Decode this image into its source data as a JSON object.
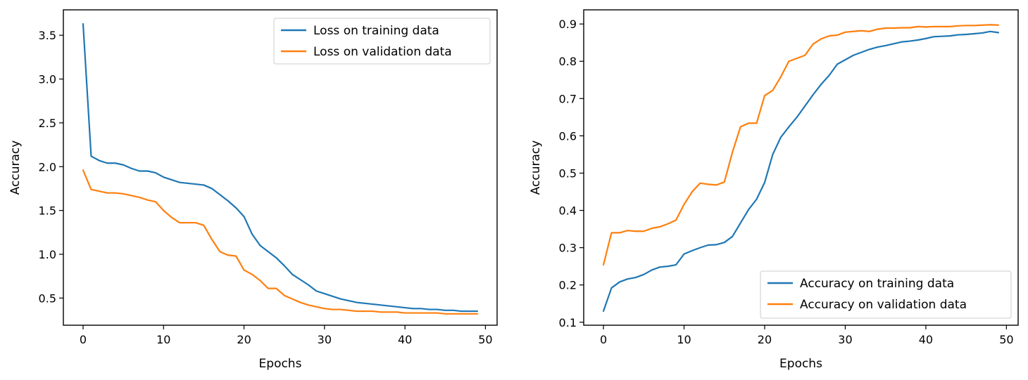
{
  "colors": {
    "train": "#1f77b4",
    "val": "#ff7f0e"
  },
  "chart_data": [
    {
      "type": "line",
      "title": "",
      "xlabel": "Epochs",
      "ylabel": "Accuracy",
      "xlim": [
        -2.45,
        51.45
      ],
      "ylim": [
        0.19,
        3.79
      ],
      "xticks": [
        0,
        10,
        20,
        30,
        40,
        50
      ],
      "xtick_labels": [
        "0",
        "10",
        "20",
        "30",
        "40",
        "50"
      ],
      "yticks": [
        0.5,
        1.0,
        1.5,
        2.0,
        2.5,
        3.0,
        3.5
      ],
      "ytick_labels": [
        "0.5",
        "1.0",
        "1.5",
        "2.0",
        "2.5",
        "3.0",
        "3.5"
      ],
      "legend_position": "top-right",
      "x": [
        0,
        1,
        2,
        3,
        4,
        5,
        6,
        7,
        8,
        9,
        10,
        11,
        12,
        13,
        14,
        15,
        16,
        17,
        18,
        19,
        20,
        21,
        22,
        23,
        24,
        25,
        26,
        27,
        28,
        29,
        30,
        31,
        32,
        33,
        34,
        35,
        36,
        37,
        38,
        39,
        40,
        41,
        42,
        43,
        44,
        45,
        46,
        47,
        48,
        49
      ],
      "series": [
        {
          "name": "Loss on training data",
          "color_key": "train",
          "values": [
            3.63,
            2.12,
            2.07,
            2.04,
            2.04,
            2.02,
            1.98,
            1.95,
            1.95,
            1.93,
            1.88,
            1.85,
            1.82,
            1.81,
            1.8,
            1.79,
            1.75,
            1.68,
            1.61,
            1.53,
            1.43,
            1.23,
            1.1,
            1.03,
            0.96,
            0.87,
            0.77,
            0.71,
            0.65,
            0.58,
            0.55,
            0.52,
            0.49,
            0.47,
            0.45,
            0.44,
            0.43,
            0.42,
            0.41,
            0.4,
            0.39,
            0.38,
            0.38,
            0.37,
            0.37,
            0.36,
            0.36,
            0.35,
            0.35,
            0.35
          ]
        },
        {
          "name": "Loss on validation data",
          "color_key": "val",
          "values": [
            1.96,
            1.74,
            1.72,
            1.7,
            1.7,
            1.69,
            1.67,
            1.65,
            1.62,
            1.6,
            1.5,
            1.42,
            1.36,
            1.36,
            1.36,
            1.33,
            1.17,
            1.03,
            0.99,
            0.98,
            0.82,
            0.77,
            0.7,
            0.61,
            0.61,
            0.53,
            0.49,
            0.45,
            0.42,
            0.4,
            0.38,
            0.37,
            0.37,
            0.36,
            0.35,
            0.35,
            0.35,
            0.34,
            0.34,
            0.34,
            0.33,
            0.33,
            0.33,
            0.33,
            0.33,
            0.32,
            0.32,
            0.32,
            0.32,
            0.32
          ]
        }
      ]
    },
    {
      "type": "line",
      "title": "",
      "xlabel": "Epochs",
      "ylabel": "Accuracy",
      "xlim": [
        -2.45,
        51.45
      ],
      "ylim": [
        0.092,
        0.938
      ],
      "xticks": [
        0,
        10,
        20,
        30,
        40,
        50
      ],
      "xtick_labels": [
        "0",
        "10",
        "20",
        "30",
        "40",
        "50"
      ],
      "yticks": [
        0.1,
        0.2,
        0.3,
        0.4,
        0.5,
        0.6,
        0.7,
        0.8,
        0.9
      ],
      "ytick_labels": [
        "0.1",
        "0.2",
        "0.3",
        "0.4",
        "0.5",
        "0.6",
        "0.7",
        "0.8",
        "0.9"
      ],
      "legend_position": "bottom-right",
      "x": [
        0,
        1,
        2,
        3,
        4,
        5,
        6,
        7,
        8,
        9,
        10,
        11,
        12,
        13,
        14,
        15,
        16,
        17,
        18,
        19,
        20,
        21,
        22,
        23,
        24,
        25,
        26,
        27,
        28,
        29,
        30,
        31,
        32,
        33,
        34,
        35,
        36,
        37,
        38,
        39,
        40,
        41,
        42,
        43,
        44,
        45,
        46,
        47,
        48,
        49
      ],
      "series": [
        {
          "name": "Accuracy on training data",
          "color_key": "train",
          "values": [
            0.13,
            0.192,
            0.208,
            0.216,
            0.22,
            0.228,
            0.24,
            0.248,
            0.25,
            0.254,
            0.283,
            0.292,
            0.3,
            0.307,
            0.308,
            0.314,
            0.33,
            0.366,
            0.402,
            0.43,
            0.475,
            0.55,
            0.596,
            0.624,
            0.65,
            0.68,
            0.71,
            0.738,
            0.762,
            0.792,
            0.804,
            0.816,
            0.824,
            0.832,
            0.838,
            0.842,
            0.847,
            0.852,
            0.854,
            0.857,
            0.861,
            0.866,
            0.867,
            0.868,
            0.871,
            0.872,
            0.874,
            0.876,
            0.88,
            0.877
          ]
        },
        {
          "name": "Accuracy on validation data",
          "color_key": "val",
          "values": [
            0.254,
            0.34,
            0.34,
            0.346,
            0.344,
            0.344,
            0.352,
            0.356,
            0.364,
            0.374,
            0.416,
            0.45,
            0.473,
            0.47,
            0.468,
            0.476,
            0.556,
            0.624,
            0.634,
            0.634,
            0.708,
            0.722,
            0.758,
            0.8,
            0.808,
            0.816,
            0.846,
            0.86,
            0.868,
            0.87,
            0.878,
            0.88,
            0.882,
            0.88,
            0.886,
            0.889,
            0.889,
            0.89,
            0.89,
            0.893,
            0.892,
            0.893,
            0.893,
            0.893,
            0.895,
            0.896,
            0.896,
            0.897,
            0.898,
            0.897
          ]
        }
      ]
    }
  ]
}
